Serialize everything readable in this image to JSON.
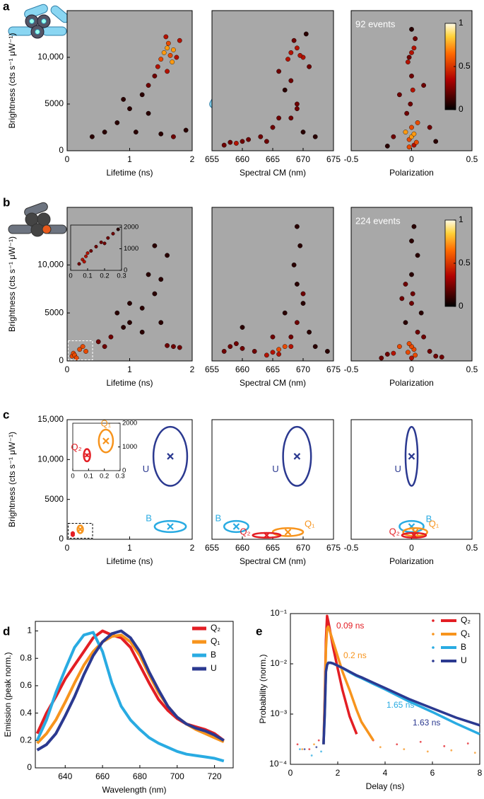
{
  "chart_data": [
    {
      "type": "scatter",
      "panel_label": "a",
      "ylabel": "Brightness (cts s⁻¹ μW⁻¹)",
      "xlabel": "Lifetime (ns)",
      "background": "#a8a8a8",
      "x": [
        1.55,
        1.6,
        1.65,
        1.7,
        1.5,
        1.75,
        1.62,
        1.58,
        1.68,
        1.45,
        1.8,
        1.4,
        1.3,
        1.2,
        1.0,
        0.8,
        0.6,
        0.4,
        1.1,
        1.5,
        1.7,
        1.9,
        1.6,
        0.9,
        1.3
      ],
      "values": [
        10500,
        11000,
        10200,
        10800,
        9800,
        10000,
        11500,
        12200,
        9500,
        9000,
        11800,
        8000,
        7000,
        6000,
        4500,
        3000,
        2000,
        1500,
        2000,
        1800,
        1500,
        2200,
        8500,
        5500,
        4000
      ],
      "xlim": [
        0,
        2
      ],
      "xticks": [
        0,
        1,
        2
      ],
      "ylim": [
        0,
        15000
      ],
      "yticks": [
        0,
        5000,
        {
          "value": 10000,
          "label": "10,000"
        }
      ]
    },
    {
      "type": "scatter",
      "xlabel": "Spectral CM (nm)",
      "background": "#a8a8a8",
      "x": [
        668,
        669,
        670,
        667.5,
        668.5,
        669.5,
        671,
        666,
        670.5,
        668,
        667,
        669,
        666,
        665,
        663,
        661,
        660,
        659,
        658,
        657,
        664,
        670,
        672,
        668,
        669
      ],
      "values": [
        10500,
        11000,
        10000,
        9800,
        11800,
        10200,
        9000,
        8500,
        12500,
        7500,
        6500,
        5000,
        3500,
        2500,
        1500,
        1200,
        1000,
        800,
        900,
        600,
        1000,
        2000,
        1500,
        3500,
        4500
      ],
      "xlim": [
        655,
        675
      ],
      "xticks": [
        655,
        660,
        665,
        670,
        675
      ],
      "ylim": [
        0,
        15000
      ],
      "yticks": []
    },
    {
      "type": "scatter",
      "xlabel": "Polarization",
      "background": "#a8a8a8",
      "events": "92  events",
      "colorbar": {
        "ticks": [
          0,
          0.5,
          1
        ]
      },
      "x": [
        0,
        0.02,
        -0.02,
        0.03,
        -0.03,
        0,
        0.01,
        -0.01,
        0.05,
        -0.05,
        0,
        0.02,
        -0.02,
        0.04,
        0,
        -0.04,
        0.1,
        -0.1,
        0.15,
        -0.15,
        0,
        0.02,
        -0.02,
        0.2,
        -0.2
      ],
      "values": [
        10500,
        11000,
        10000,
        12000,
        9500,
        8000,
        6500,
        5000,
        3000,
        2000,
        1500,
        1800,
        1200,
        900,
        2500,
        4000,
        7000,
        6000,
        2500,
        1500,
        13000,
        600,
        400,
        1000,
        500
      ],
      "xlim": [
        -0.5,
        0.5
      ],
      "xticks": [
        -0.5,
        0,
        0.5
      ],
      "ylim": [
        0,
        15000
      ],
      "yticks": []
    },
    {
      "type": "scatter",
      "panel_label": "b",
      "ylabel": "Brightness (cts s⁻¹ μW⁻¹)",
      "xlabel": "Lifetime (ns)",
      "background": "#a8a8a8",
      "x": [
        0.08,
        0.1,
        0.12,
        0.2,
        0.25,
        0.3,
        0.5,
        0.7,
        0.9,
        1.0,
        1.2,
        1.4,
        1.5,
        1.6,
        1.7,
        1.8,
        1.2,
        1.0,
        0.8,
        1.4,
        1.6,
        0.6,
        1.3,
        1.5,
        0.15
      ],
      "values": [
        500,
        800,
        600,
        1200,
        1500,
        1000,
        2000,
        2500,
        3500,
        4000,
        5500,
        7000,
        8500,
        1600,
        1500,
        1400,
        3000,
        6000,
        5000,
        12000,
        11000,
        1500,
        9000,
        4000,
        300
      ],
      "xlim": [
        0,
        2
      ],
      "xticks": [
        0,
        1,
        2
      ],
      "ylim": [
        0,
        16000
      ],
      "yticks": [
        0,
        5000,
        {
          "value": 10000,
          "label": "10,000"
        }
      ],
      "inset": {
        "x": [
          0.05,
          0.07,
          0.09,
          0.1,
          0.12,
          0.15,
          0.18,
          0.2,
          0.22,
          0.25,
          0.08,
          0.28
        ],
        "values": [
          300,
          500,
          650,
          800,
          900,
          1100,
          1300,
          1250,
          1500,
          1700,
          400,
          1900
        ],
        "xlim": [
          0,
          0.3
        ],
        "xticks": [
          0,
          0.1,
          0.2,
          0.3
        ],
        "ylim": [
          0,
          2100
        ],
        "yticks": [
          0,
          1000,
          2000
        ]
      }
    },
    {
      "type": "scatter",
      "xlabel": "Spectral CM (nm)",
      "background": "#a8a8a8",
      "x": [
        658,
        659,
        660,
        664,
        665,
        666,
        667,
        668,
        669,
        670,
        669,
        668.5,
        669.5,
        670,
        671,
        668,
        665,
        662,
        660,
        657,
        672,
        674,
        666,
        667,
        669
      ],
      "values": [
        1500,
        1800,
        1300,
        600,
        900,
        1200,
        1500,
        2500,
        4000,
        6000,
        8000,
        10000,
        12000,
        7000,
        3000,
        1500,
        2500,
        1000,
        3500,
        1000,
        1500,
        1000,
        700,
        5000,
        14000
      ],
      "xlim": [
        655,
        675
      ],
      "xticks": [
        655,
        660,
        665,
        670,
        675
      ],
      "ylim": [
        0,
        16000
      ],
      "yticks": []
    },
    {
      "type": "scatter",
      "xlabel": "Polarization",
      "background": "#a8a8a8",
      "events": "224 events",
      "colorbar": {
        "ticks": [
          0,
          0.5,
          1
        ]
      },
      "x": [
        0,
        0.02,
        -0.02,
        0.03,
        -0.03,
        0.05,
        -0.05,
        0,
        0.1,
        -0.1,
        0.15,
        -0.15,
        0,
        0.05,
        -0.05,
        0.2,
        -0.2,
        0,
        0.02,
        0.08,
        -0.08,
        0.25,
        -0.25,
        0,
        0.01
      ],
      "values": [
        1500,
        1200,
        1800,
        600,
        900,
        3000,
        4000,
        6000,
        2500,
        1500,
        1000,
        800,
        9000,
        11000,
        8000,
        500,
        700,
        12500,
        14000,
        5000,
        6500,
        400,
        300,
        300,
        7000
      ],
      "xlim": [
        -0.5,
        0.5
      ],
      "xticks": [
        -0.5,
        0,
        0.5
      ],
      "ylim": [
        0,
        16000
      ],
      "yticks": []
    },
    {
      "type": "ellipse",
      "panel_label": "c",
      "ylabel": "Brightness (cts s⁻¹ μW⁻¹)",
      "xlabel": "Lifetime (ns)",
      "xlim": [
        0,
        2
      ],
      "xticks": [
        0,
        1,
        2
      ],
      "ylim": [
        0,
        15000
      ],
      "yticks": [
        0,
        5000,
        {
          "value": 10000,
          "label": "10,000"
        },
        {
          "value": 15000,
          "label": "15,000"
        }
      ],
      "states": [
        {
          "name": "U",
          "color": "#2b3990",
          "x": 1.65,
          "y": 10400,
          "x_sd": 0.27,
          "y_sd": 3700
        },
        {
          "name": "B",
          "color": "#29abe2",
          "x": 1.65,
          "y": 1600,
          "x_sd": 0.25,
          "y_sd": 700
        }
      ],
      "inset": {
        "xlim": [
          0,
          0.3
        ],
        "xticks": [
          0,
          0.1,
          0.2,
          0.3
        ],
        "ylim": [
          0,
          2000
        ],
        "yticks": [
          0,
          1000,
          2000
        ],
        "states": [
          {
            "name": "Q₁",
            "color": "#f7941d",
            "x": 0.21,
            "y": 1250,
            "x_sd": 0.045,
            "y_sd": 480
          },
          {
            "name": "Q₂",
            "color": "#e31e24",
            "x": 0.09,
            "y": 650,
            "x_sd": 0.02,
            "y_sd": 260
          }
        ]
      }
    },
    {
      "type": "ellipse",
      "xlabel": "Spectral CM (nm)",
      "xlim": [
        655,
        675
      ],
      "xticks": [
        655,
        660,
        665,
        670,
        675
      ],
      "ylim": [
        0,
        15000
      ],
      "yticks": [],
      "states": [
        {
          "name": "U",
          "color": "#2b3990",
          "x": 669,
          "y": 10400,
          "x_sd": 2.3,
          "y_sd": 3700
        },
        {
          "name": "B",
          "color": "#29abe2",
          "x": 659,
          "y": 1600,
          "x_sd": 2.0,
          "y_sd": 700
        },
        {
          "name": "Q₁",
          "color": "#f7941d",
          "x": 667.5,
          "y": 900,
          "x_sd": 2.5,
          "y_sd": 500
        },
        {
          "name": "Q₂",
          "color": "#e31e24",
          "x": 664,
          "y": 500,
          "x_sd": 2.3,
          "y_sd": 300
        }
      ]
    },
    {
      "type": "ellipse",
      "xlabel": "Polarization",
      "xlim": [
        -0.5,
        0.5
      ],
      "xticks": [
        -0.5,
        0,
        0.5
      ],
      "ylim": [
        0,
        15000
      ],
      "yticks": [],
      "states": [
        {
          "name": "U",
          "color": "#2b3990",
          "x": 0,
          "y": 10400,
          "x_sd": 0.05,
          "y_sd": 3700
        },
        {
          "name": "B",
          "color": "#29abe2",
          "x": 0,
          "y": 1600,
          "x_sd": 0.1,
          "y_sd": 700
        },
        {
          "name": "Q₁",
          "color": "#f7941d",
          "x": 0.03,
          "y": 900,
          "x_sd": 0.1,
          "y_sd": 500
        },
        {
          "name": "Q₂",
          "color": "#e31e24",
          "x": 0.02,
          "y": 500,
          "x_sd": 0.1,
          "y_sd": 300
        }
      ]
    },
    {
      "type": "line",
      "panel_label": "d",
      "ylabel": "Emission (peak norm.)",
      "xlabel": "Wavelength (nm)",
      "x": [
        625,
        630,
        635,
        640,
        645,
        650,
        655,
        660,
        665,
        670,
        675,
        680,
        685,
        690,
        695,
        700,
        705,
        710,
        715,
        720,
        725
      ],
      "series": [
        {
          "name": "Q₂",
          "color": "#e31e24",
          "values": [
            0.25,
            0.4,
            0.52,
            0.65,
            0.75,
            0.85,
            0.95,
            1.0,
            0.97,
            0.95,
            0.88,
            0.75,
            0.62,
            0.5,
            0.42,
            0.36,
            0.32,
            0.3,
            0.28,
            0.25,
            0.2
          ]
        },
        {
          "name": "Q₁",
          "color": "#f7941d",
          "values": [
            0.18,
            0.25,
            0.35,
            0.48,
            0.62,
            0.75,
            0.85,
            0.92,
            0.96,
            0.97,
            0.92,
            0.82,
            0.68,
            0.55,
            0.45,
            0.37,
            0.32,
            0.28,
            0.25,
            0.22,
            0.19
          ]
        },
        {
          "name": "B",
          "color": "#29abe2",
          "values": [
            0.2,
            0.35,
            0.55,
            0.72,
            0.88,
            0.97,
            0.99,
            0.85,
            0.62,
            0.45,
            0.35,
            0.28,
            0.22,
            0.18,
            0.15,
            0.12,
            0.1,
            0.09,
            0.08,
            0.07,
            0.05
          ]
        },
        {
          "name": "U",
          "color": "#2b3990",
          "values": [
            0.13,
            0.17,
            0.25,
            0.38,
            0.52,
            0.68,
            0.82,
            0.92,
            0.98,
            1.0,
            0.95,
            0.85,
            0.7,
            0.57,
            0.45,
            0.37,
            0.32,
            0.29,
            0.27,
            0.24,
            0.2
          ]
        }
      ],
      "xlim": [
        624,
        730
      ],
      "xticks": [
        640,
        660,
        680,
        700,
        720
      ],
      "ylim": [
        0,
        1.07
      ],
      "yticks": [
        0,
        0.2,
        0.4,
        0.6,
        0.8,
        1
      ]
    },
    {
      "type": "line",
      "panel_label": "e",
      "ylabel": "Probability (norm.)",
      "xlabel": "Delay (ns)",
      "log_y": true,
      "x": [
        1.4,
        1.45,
        1.5,
        1.55,
        1.6,
        1.7,
        1.8,
        2.0,
        2.2,
        2.5,
        2.8,
        3.0,
        3.5,
        4,
        5,
        6,
        7,
        8
      ],
      "series": [
        {
          "name": "Q₂",
          "color": "#e31e24",
          "lifetime_label": "0.09 ns",
          "values": [
            0.00025,
            0.002,
            0.03,
            0.09,
            0.07,
            0.04,
            0.022,
            0.008,
            0.003,
            0.0009,
            0.0004,
            null,
            null,
            null,
            null,
            null,
            null,
            null
          ],
          "points_x": [
            0.3,
            0.8,
            1.2,
            3.5,
            4.5,
            5.5,
            6.5,
            7.5
          ],
          "points_y": [
            0.00025,
            0.0002,
            0.0003,
            0.0003,
            0.00025,
            0.00028,
            0.00023,
            0.00026
          ]
        },
        {
          "name": "Q₁",
          "color": "#f7941d",
          "lifetime_label": "0.2 ns",
          "values": [
            0.00025,
            0.0015,
            0.02,
            0.05,
            0.055,
            0.04,
            0.028,
            0.014,
            0.007,
            0.003,
            0.0012,
            0.0007,
            0.0003,
            null,
            null,
            null,
            null,
            null
          ],
          "points_x": [
            0.5,
            1.0,
            3.8,
            4.8,
            5.8,
            6.8,
            7.8
          ],
          "points_y": [
            0.0002,
            0.00025,
            0.00022,
            0.0002,
            0.00018,
            0.00019,
            0.00017
          ]
        },
        {
          "name": "B",
          "color": "#29abe2",
          "lifetime_label": "1.65 ns",
          "values": [
            0.00025,
            0.001,
            0.007,
            0.0095,
            0.0105,
            0.0105,
            0.0102,
            0.0092,
            0.0082,
            0.0068,
            0.0057,
            0.0052,
            0.004,
            0.0031,
            0.0018,
            0.0011,
            0.00065,
            0.0004
          ],
          "points_x": [
            0.4,
            0.9,
            1.3
          ],
          "points_y": [
            0.0002,
            0.00015,
            0.00018
          ]
        },
        {
          "name": "U",
          "color": "#2b3990",
          "lifetime_label": "1.63 ns",
          "values": [
            0.00025,
            0.001,
            0.007,
            0.0095,
            0.0105,
            0.0105,
            0.0102,
            0.0092,
            0.0083,
            0.007,
            0.0059,
            0.0054,
            0.0042,
            0.0033,
            0.002,
            0.0013,
            0.00085,
            0.0006
          ],
          "points_x": [
            0.6,
            1.1
          ],
          "points_y": [
            0.0002,
            0.00022
          ]
        }
      ],
      "xlim": [
        0,
        8
      ],
      "xticks": [
        0,
        2,
        4,
        6,
        8
      ],
      "ylim": [
        0.0001,
        0.1
      ],
      "yticks": [
        {
          "value": 0.0001,
          "label": "10⁻⁴"
        },
        {
          "value": 0.001,
          "label": "10⁻³"
        },
        {
          "value": 0.01,
          "label": "10⁻²"
        },
        {
          "value": 0.1,
          "label": "10⁻¹"
        }
      ]
    }
  ]
}
